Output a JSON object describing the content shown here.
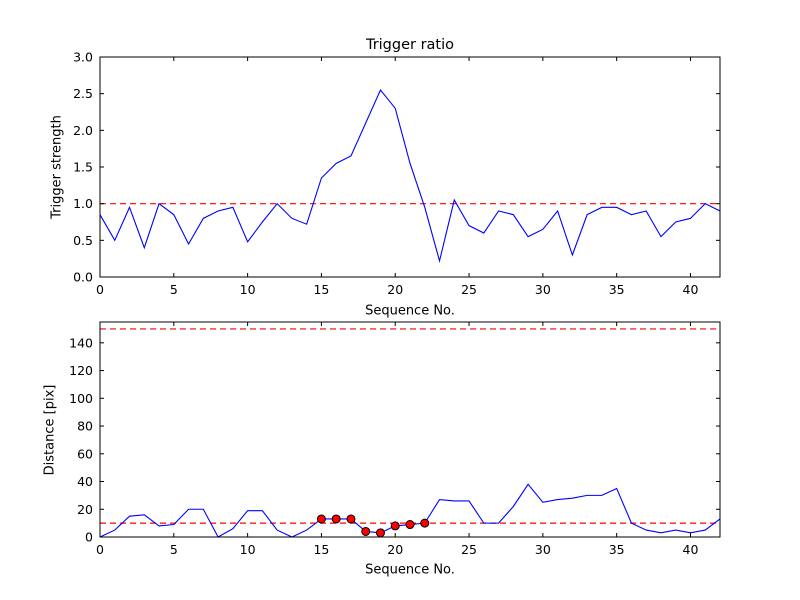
{
  "figure": {
    "background": "#ffffff",
    "line_color": "#0000ff",
    "threshold_color": "#ff0000",
    "marker_fill": "#ff0000",
    "marker_edge": "#000000"
  },
  "chart_data": [
    {
      "type": "line",
      "title": "Trigger ratio",
      "xlabel": "Sequence No.",
      "ylabel": "Trigger strength",
      "xlim": [
        0,
        42
      ],
      "ylim": [
        0.0,
        3.0
      ],
      "xticks": [
        0,
        5,
        10,
        15,
        20,
        25,
        30,
        35,
        40
      ],
      "xtick_labels": [
        "0",
        "5",
        "10",
        "15",
        "20",
        "25",
        "30",
        "35",
        "40"
      ],
      "yticks": [
        0.0,
        0.5,
        1.0,
        1.5,
        2.0,
        2.5,
        3.0
      ],
      "ytick_labels": [
        "0.0",
        "0.5",
        "1.0",
        "1.5",
        "2.0",
        "2.5",
        "3.0"
      ],
      "legend": "off",
      "grid": "off",
      "threshold_lines": [
        {
          "y": 1.0,
          "color": "#ff0000",
          "style": "dashed"
        }
      ],
      "series": [
        {
          "name": "trigger-strength-line",
          "color": "#0000ff",
          "x": [
            0,
            1,
            2,
            3,
            4,
            5,
            6,
            7,
            8,
            9,
            10,
            11,
            12,
            13,
            14,
            15,
            16,
            17,
            18,
            19,
            20,
            21,
            22,
            23,
            24,
            25,
            26,
            27,
            28,
            29,
            30,
            31,
            32,
            33,
            34,
            35,
            36,
            37,
            38,
            39,
            40,
            41,
            42
          ],
          "y": [
            0.85,
            0.5,
            0.95,
            0.4,
            1.0,
            0.85,
            0.45,
            0.8,
            0.9,
            0.95,
            0.48,
            0.75,
            1.0,
            0.8,
            0.72,
            1.35,
            1.55,
            1.65,
            2.1,
            2.55,
            2.3,
            1.55,
            0.95,
            0.22,
            1.05,
            0.7,
            0.6,
            0.9,
            0.85,
            0.55,
            0.65,
            0.9,
            0.3,
            0.85,
            0.95,
            0.95,
            0.85,
            0.9,
            0.55,
            0.75,
            0.8,
            1.0,
            0.9
          ]
        }
      ]
    },
    {
      "type": "line",
      "title": "",
      "xlabel": "Sequence No.",
      "ylabel": "Distance [pix]",
      "xlim": [
        0,
        42
      ],
      "ylim": [
        0,
        155
      ],
      "xticks": [
        0,
        5,
        10,
        15,
        20,
        25,
        30,
        35,
        40
      ],
      "xtick_labels": [
        "0",
        "5",
        "10",
        "15",
        "20",
        "25",
        "30",
        "35",
        "40"
      ],
      "yticks": [
        0,
        20,
        40,
        60,
        80,
        100,
        120,
        140
      ],
      "ytick_labels": [
        "0",
        "20",
        "40",
        "60",
        "80",
        "100",
        "120",
        "140"
      ],
      "legend": "off",
      "grid": "off",
      "threshold_lines": [
        {
          "y": 150,
          "color": "#ff0000",
          "style": "dashed"
        },
        {
          "y": 10,
          "color": "#ff0000",
          "style": "dashed"
        }
      ],
      "series": [
        {
          "name": "distance-line",
          "color": "#0000ff",
          "x": [
            0,
            1,
            2,
            3,
            4,
            5,
            6,
            7,
            8,
            9,
            10,
            11,
            12,
            13,
            14,
            15,
            16,
            17,
            18,
            19,
            20,
            21,
            22,
            23,
            24,
            25,
            26,
            27,
            28,
            29,
            30,
            31,
            32,
            33,
            34,
            35,
            36,
            37,
            38,
            39,
            40,
            41,
            42
          ],
          "y": [
            0,
            5,
            15,
            16,
            8,
            9,
            20,
            20,
            0,
            6,
            19,
            19,
            5,
            0,
            5,
            13,
            13,
            13,
            4,
            3,
            8,
            9,
            10,
            27,
            26,
            26,
            10,
            10,
            22,
            38,
            25,
            27,
            28,
            30,
            30,
            35,
            10,
            5,
            3,
            5,
            3,
            5,
            13
          ]
        }
      ],
      "markers": {
        "name": "trigger-event-markers",
        "color": "#ff0000",
        "edge": "#000000",
        "x": [
          15,
          16,
          17,
          18,
          19,
          20,
          21,
          22
        ],
        "y": [
          13,
          13,
          13,
          4,
          3,
          8,
          9,
          10
        ]
      }
    }
  ]
}
